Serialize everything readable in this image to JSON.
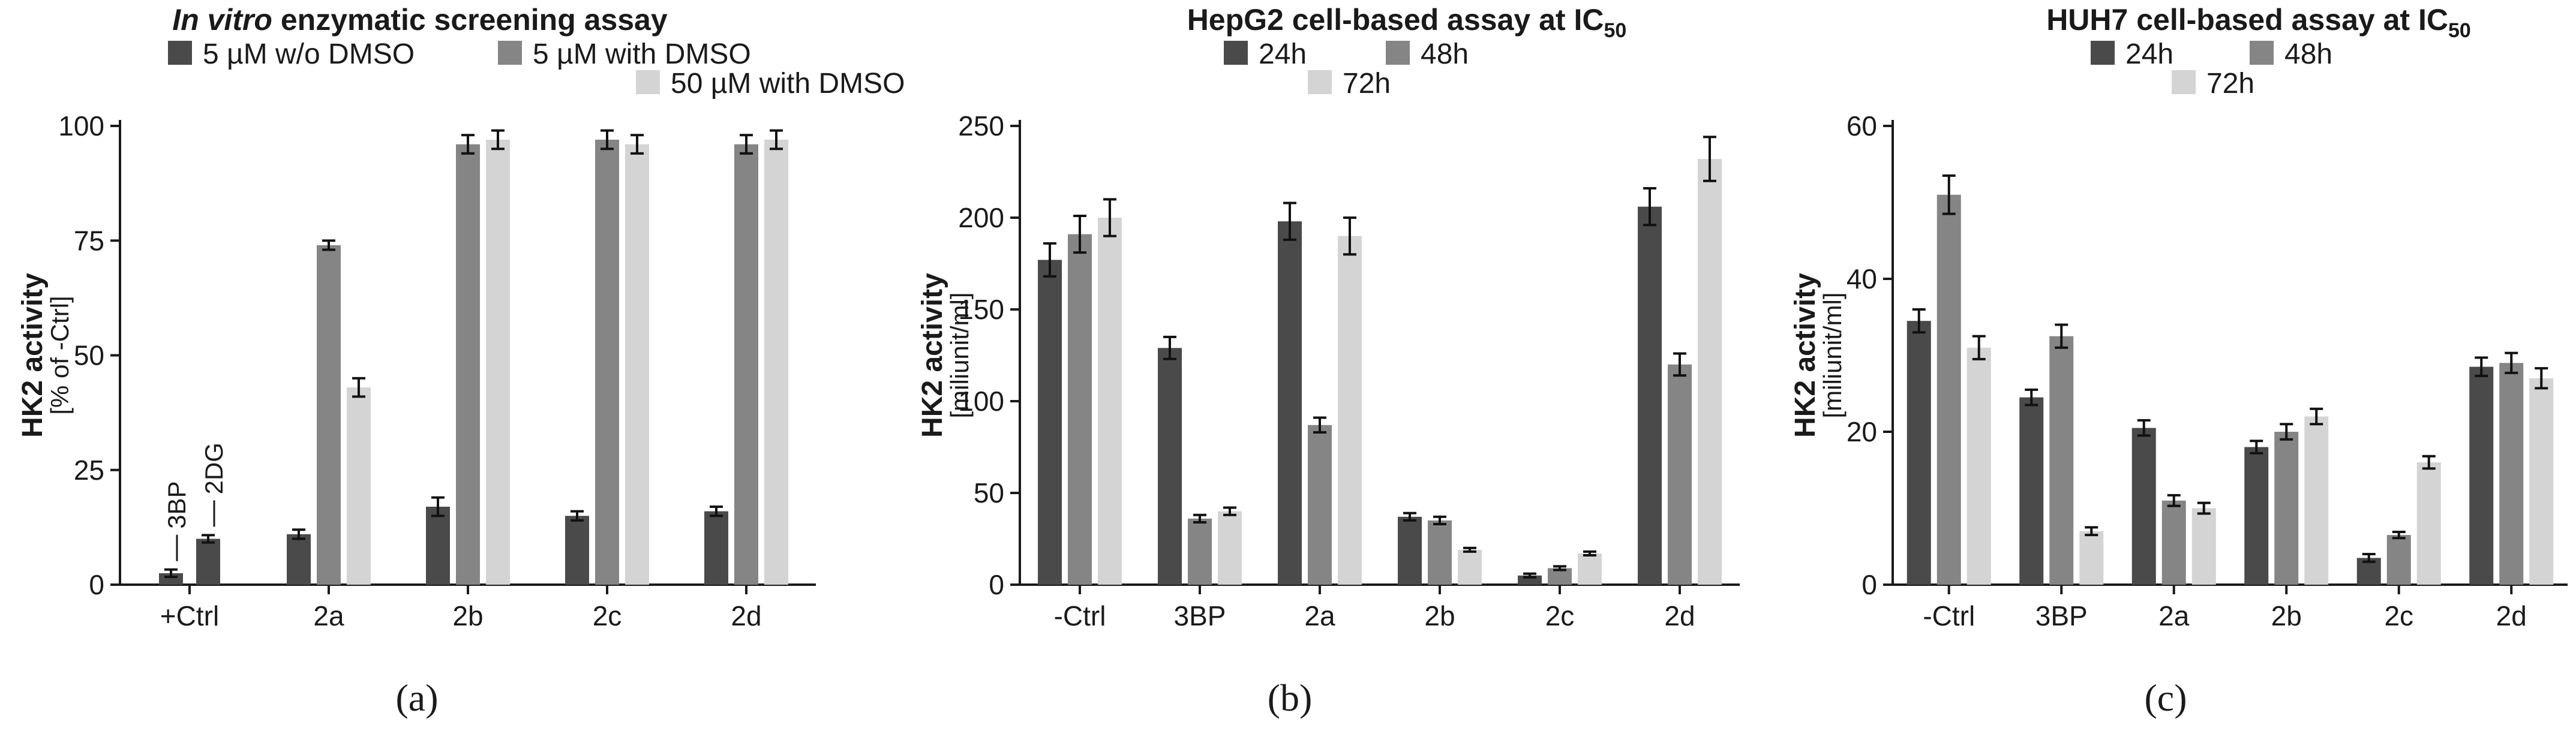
{
  "colors": {
    "dark": "#4a4a4a",
    "mid": "#858585",
    "light": "#d4d4d4",
    "axis": "#1a1a1a"
  },
  "chart_data": [
    {
      "type": "bar",
      "panel_label": "(a)",
      "title_italic": "In vitro",
      "title_rest": " enzymatic screening assay",
      "ylabel": "HK2 activity",
      "ylabel_sub": "[% of -Ctrl]",
      "ylim": [
        0,
        100
      ],
      "yticks": [
        "0",
        "25",
        "50",
        "75",
        "100"
      ],
      "grid": false,
      "legend_placement": "top",
      "categories": [
        "+Ctrl",
        "2a",
        "2b",
        "2c",
        "2d"
      ],
      "series": [
        {
          "name": "5 µM w/o DMSO",
          "color_key": "dark",
          "values": [
            null,
            11,
            17,
            15,
            16
          ],
          "errors": [
            null,
            1,
            2,
            1,
            1
          ]
        },
        {
          "name": "5 µM with DMSO",
          "color_key": "mid",
          "values": [
            null,
            74,
            96,
            97,
            96
          ],
          "errors": [
            null,
            1,
            2,
            2,
            2
          ]
        },
        {
          "name": "50 µM with DMSO",
          "color_key": "light",
          "values": [
            null,
            43,
            97,
            96,
            97
          ],
          "errors": [
            null,
            2,
            2,
            2,
            2
          ]
        }
      ],
      "control_bars": [
        {
          "label": "3BP",
          "value": 2.5,
          "error": 0.8
        },
        {
          "label": "2DG",
          "value": 10,
          "error": 0.8
        }
      ]
    },
    {
      "type": "bar",
      "panel_label": "(b)",
      "title": "HepG2 cell-based assay at IC",
      "title_sub": "50",
      "ylabel": "HK2 activity",
      "ylabel_sub": "[miliunit/ml]",
      "ylim": [
        0,
        250
      ],
      "yticks": [
        "0",
        "50",
        "100",
        "150",
        "200",
        "250"
      ],
      "grid": false,
      "legend_placement": "top",
      "categories": [
        "-Ctrl",
        "3BP",
        "2a",
        "2b",
        "2c",
        "2d"
      ],
      "series": [
        {
          "name": "24h",
          "color_key": "dark",
          "values": [
            177,
            129,
            198,
            37,
            5,
            206
          ],
          "errors": [
            9,
            6,
            10,
            2,
            1,
            10
          ]
        },
        {
          "name": "48h",
          "color_key": "mid",
          "values": [
            191,
            36,
            87,
            35,
            9,
            120
          ],
          "errors": [
            10,
            2,
            4,
            2,
            1,
            6
          ]
        },
        {
          "name": "72h",
          "color_key": "light",
          "values": [
            200,
            40,
            190,
            19,
            17,
            232
          ],
          "errors": [
            10,
            2,
            10,
            1,
            1,
            12
          ]
        }
      ]
    },
    {
      "type": "bar",
      "panel_label": "(c)",
      "title": "HUH7 cell-based assay at IC",
      "title_sub": "50",
      "ylabel": "HK2 activity",
      "ylabel_sub": "[miliunit/ml]",
      "ylim": [
        0,
        60
      ],
      "yticks": [
        "0",
        "20",
        "40",
        "60"
      ],
      "grid": false,
      "legend_placement": "top",
      "categories": [
        "-Ctrl",
        "3BP",
        "2a",
        "2b",
        "2c",
        "2d"
      ],
      "series": [
        {
          "name": "24h",
          "color_key": "dark",
          "values": [
            34.5,
            24.5,
            20.5,
            18,
            3.5,
            28.5
          ],
          "errors": [
            1.5,
            1,
            1,
            0.8,
            0.5,
            1.2
          ]
        },
        {
          "name": "48h",
          "color_key": "mid",
          "values": [
            51,
            32.5,
            11,
            20,
            6.5,
            29
          ],
          "errors": [
            2.5,
            1.5,
            0.7,
            1,
            0.4,
            1.3
          ]
        },
        {
          "name": "72h",
          "color_key": "light",
          "values": [
            31,
            7,
            10,
            22,
            16,
            27
          ],
          "errors": [
            1.5,
            0.5,
            0.7,
            1,
            0.8,
            1.3
          ]
        }
      ]
    }
  ]
}
